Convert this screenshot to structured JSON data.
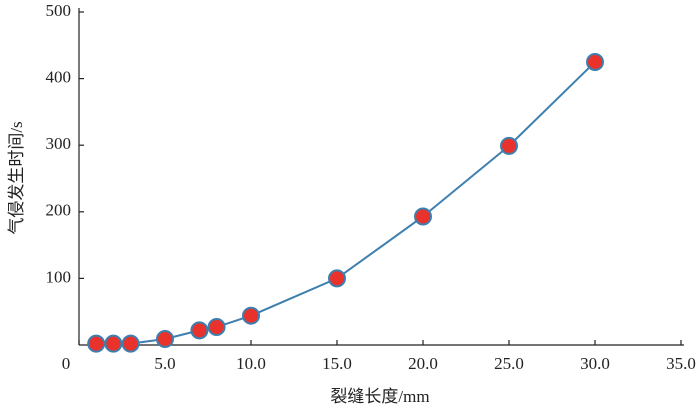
{
  "chart_data": {
    "type": "line",
    "x_label": "裂缝长度/mm",
    "y_label": "气侵发生时间/s",
    "x": [
      1,
      2,
      3,
      5,
      7,
      8,
      10,
      15,
      20,
      25,
      30
    ],
    "series": [
      {
        "name": "气侵发生时间",
        "color": "#3d7fae",
        "marker_color": "#e8322b",
        "values": [
          2,
          2,
          2,
          9,
          22,
          27,
          44,
          100,
          193,
          299,
          425
        ]
      }
    ],
    "xlim": [
      0,
      35
    ],
    "xticks": [
      0,
      {
        "value": 5,
        "label": "5.0"
      },
      {
        "value": 10,
        "label": "10.0"
      },
      {
        "value": 15,
        "label": "15.0"
      },
      {
        "value": 20,
        "label": "20.0"
      },
      {
        "value": 25,
        "label": "25.0"
      },
      {
        "value": 30,
        "label": "30.0"
      },
      {
        "value": 35,
        "label": "35.0"
      }
    ],
    "ylim": [
      0,
      500
    ],
    "yticks": [
      100,
      200,
      300,
      400,
      500
    ]
  }
}
